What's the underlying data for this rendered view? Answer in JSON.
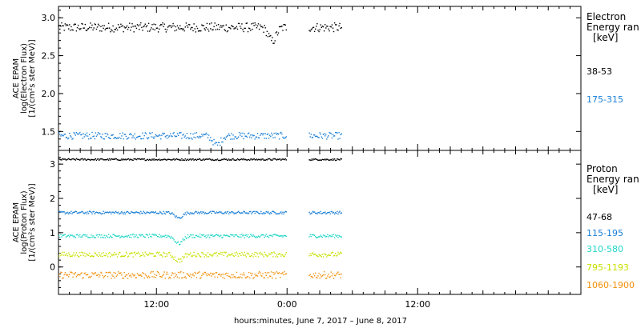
{
  "chart_data": [
    {
      "type": "scatter",
      "ylabel_lines": [
        "ACE EPAM",
        "log(Electron Flux)",
        "[1/(cm²s ster MeV)]"
      ],
      "ylim": [
        1.25,
        3.15
      ],
      "yticks": [
        1.5,
        2.0,
        2.5,
        3.0
      ],
      "ytick_labels": [
        "1.5",
        "2.0",
        "2.5",
        "3.0"
      ],
      "legend_title": [
        "Electron",
        "Energy ran",
        "[keV]"
      ],
      "series": [
        {
          "name": "38-53",
          "color": "#000000",
          "level": 2.88,
          "noise": 0.06,
          "dips": [
            {
              "t": 22.6,
              "v": 2.7
            }
          ]
        },
        {
          "name": "175-315",
          "color": "#1a7fd6",
          "level": 1.45,
          "noise": 0.045,
          "dips": [
            {
              "t": 17.5,
              "v": 1.33
            }
          ]
        }
      ]
    },
    {
      "type": "scatter",
      "ylabel_lines": [
        "ACE EPAM",
        "log(Proton Flux)",
        "[1/(cm²s ster MeV)]"
      ],
      "ylim": [
        -0.8,
        3.4
      ],
      "yticks": [
        0,
        1,
        2,
        3
      ],
      "ytick_labels": [
        "0",
        "1",
        "2",
        "3"
      ],
      "legend_title": [
        "Proton",
        "Energy ran",
        "[keV]"
      ],
      "series": [
        {
          "name": "47-68",
          "color": "#000000",
          "level": 3.15,
          "noise": 0.025,
          "dips": []
        },
        {
          "name": "115-195",
          "color": "#1a7fd6",
          "level": 1.6,
          "noise": 0.04,
          "dips": [
            {
              "t": 14.0,
              "v": 1.45
            }
          ]
        },
        {
          "name": "310-580",
          "color": "#22d6c8",
          "level": 0.92,
          "noise": 0.05,
          "dips": [
            {
              "t": 14.0,
              "v": 0.7
            }
          ]
        },
        {
          "name": "795-1193",
          "color": "#c8e000",
          "level": 0.38,
          "noise": 0.07,
          "dips": [
            {
              "t": 14.0,
              "v": 0.2
            }
          ]
        },
        {
          "name": "1060-1900",
          "color": "#f0900a",
          "level": -0.22,
          "noise": 0.1,
          "dips": []
        }
      ]
    }
  ],
  "x_axis": {
    "range_hours": [
      3.0,
      51.0
    ],
    "ticks": [
      {
        "t": 12,
        "label": "12:00"
      },
      {
        "t": 24,
        "label": "0:00"
      },
      {
        "t": 36,
        "label": "12:00"
      }
    ],
    "data_segments": [
      [
        3.0,
        23.9
      ],
      [
        26.0,
        29.0
      ]
    ],
    "title": "hours:minutes,  June  7, 2017 – June  8, 2017"
  }
}
